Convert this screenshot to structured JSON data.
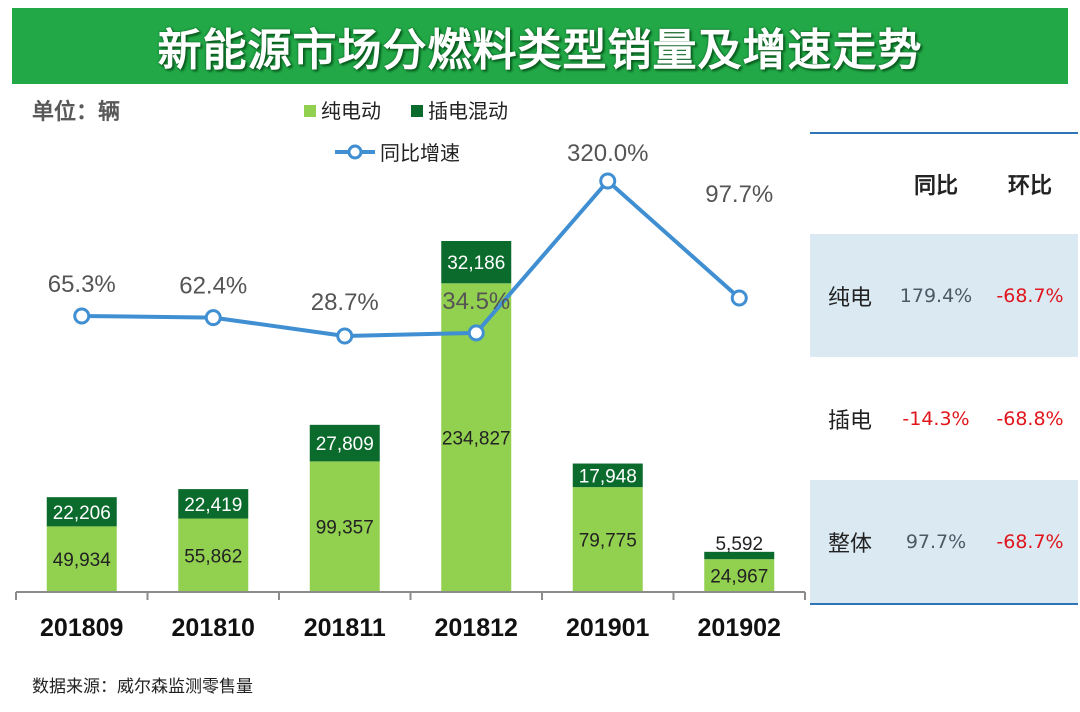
{
  "title": "新能源市场分燃料类型销量及增速走势",
  "unit_label": "单位：辆",
  "source": "数据来源：威尔森监测零售量",
  "colors": {
    "banner": "#22a847",
    "bev": "#92d050",
    "phev": "#0b6b2d",
    "line": "#3f8fd2",
    "table_line": "#2e75b6",
    "table_shade": "#dbe9f3",
    "negative": "#e0161c"
  },
  "chart_data": {
    "type": "bar",
    "stacked": true,
    "categories": [
      "201809",
      "201810",
      "201811",
      "201812",
      "201901",
      "201902"
    ],
    "series": [
      {
        "name": "纯电动",
        "type": "bar",
        "values": [
          49934,
          55862,
          99357,
          234827,
          79775,
          24967
        ],
        "labels": [
          "49,934",
          "55,862",
          "99,357",
          "234,827",
          "79,775",
          "24,967"
        ]
      },
      {
        "name": "插电混动",
        "type": "bar",
        "values": [
          22206,
          22419,
          27809,
          32186,
          17948,
          5592
        ],
        "labels": [
          "22,206",
          "22,419",
          "27,809",
          "32,186",
          "17,948",
          "5,592"
        ]
      },
      {
        "name": "同比增速",
        "type": "line",
        "values": [
          65.3,
          62.4,
          28.7,
          34.5,
          320.0,
          97.7
        ],
        "labels": [
          "65.3%",
          "62.4%",
          "28.7%",
          "34.5%",
          "320.0%",
          "97.7%"
        ]
      }
    ],
    "ylim_bar": [
      0,
      267013
    ],
    "legend_position": "top-center",
    "xlabel": "",
    "ylabel": ""
  },
  "table": {
    "headers": [
      "",
      "同比",
      "环比"
    ],
    "rows": [
      {
        "label": "纯电",
        "yoy": "179.4%",
        "mom": "-68.7%",
        "yoy_neg": false,
        "mom_neg": true,
        "shade": true
      },
      {
        "label": "插电",
        "yoy": "-14.3%",
        "mom": "-68.8%",
        "yoy_neg": true,
        "mom_neg": true,
        "shade": false
      },
      {
        "label": "整体",
        "yoy": "97.7%",
        "mom": "-68.7%",
        "yoy_neg": false,
        "mom_neg": true,
        "shade": true
      }
    ]
  }
}
